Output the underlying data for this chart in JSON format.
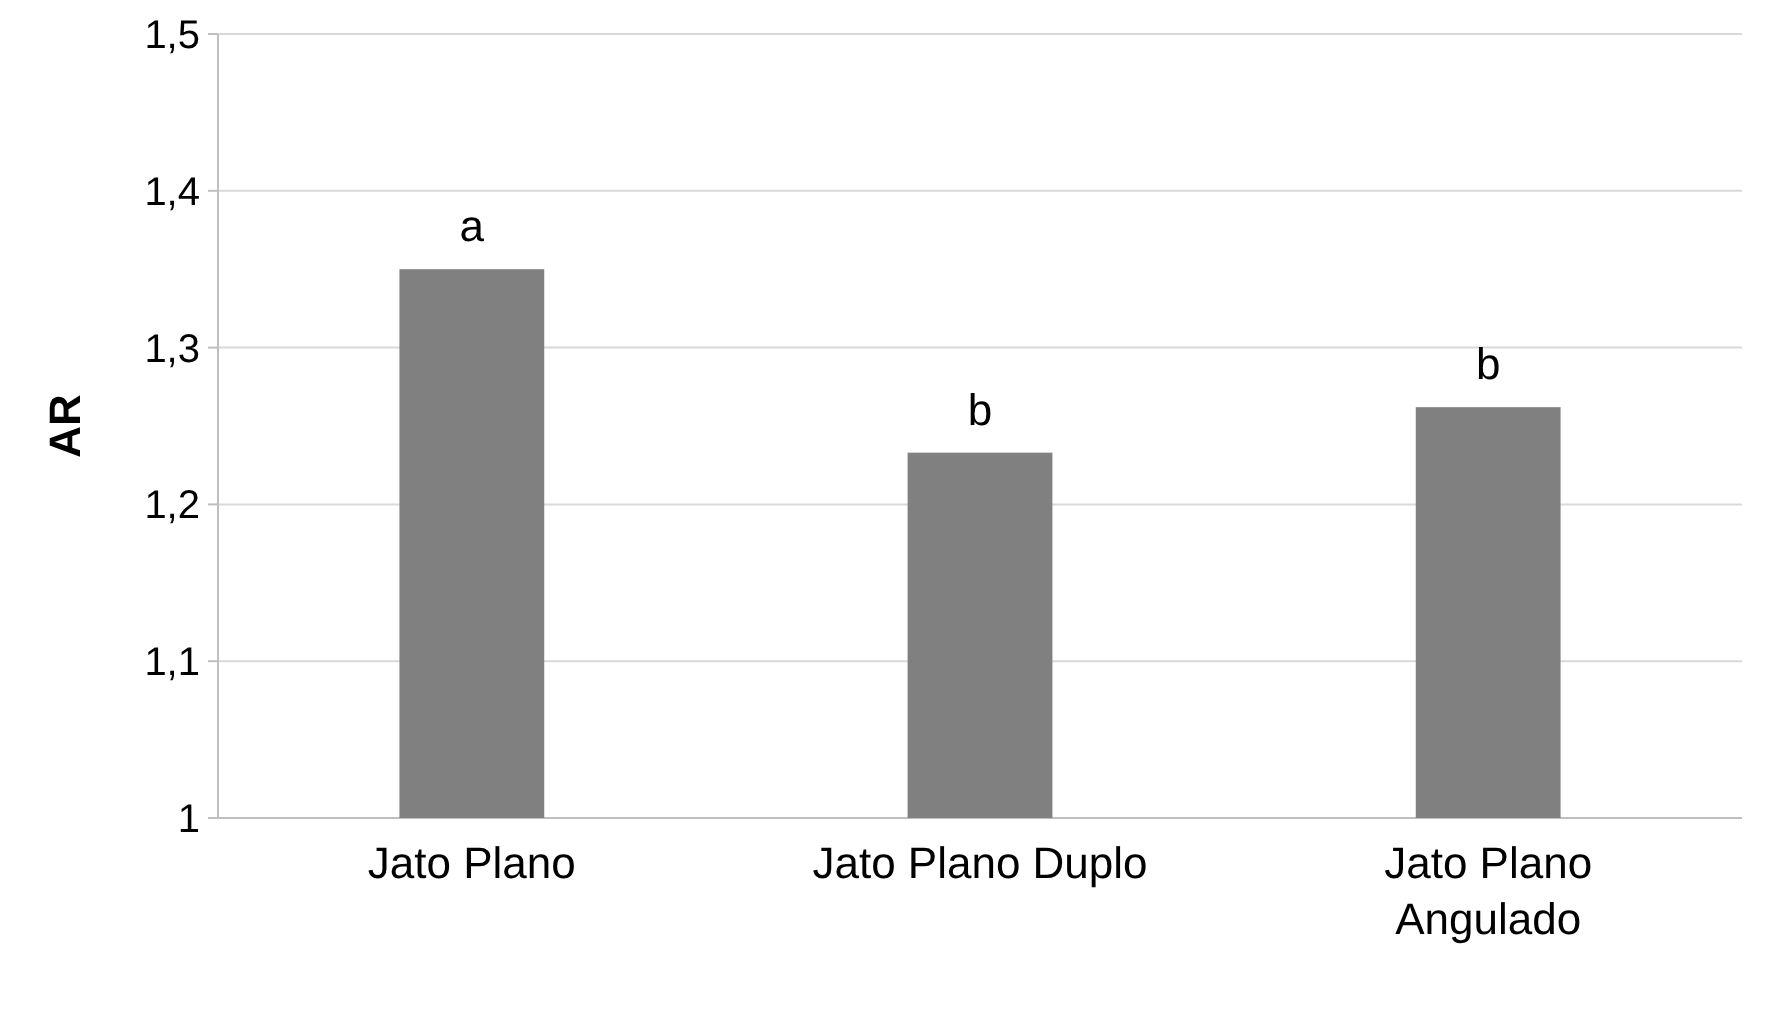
{
  "chart_data": {
    "type": "bar",
    "ylabel": "AR",
    "categories": [
      "Jato Plano",
      "Jato Plano Duplo",
      "Jato Plano Angulado"
    ],
    "values": [
      1.35,
      1.233,
      1.262
    ],
    "color": "#808080",
    "ylim": [
      1,
      1.5
    ],
    "yticks": [
      1,
      {
        "value": 1.1,
        "label": "1,1"
      },
      {
        "value": 1.2,
        "label": "1,2"
      },
      {
        "value": 1.3,
        "label": "1,3"
      },
      {
        "value": 1.4,
        "label": "1,4"
      },
      {
        "value": 1.5,
        "label": "1,5"
      }
    ],
    "grid": "y",
    "annotations": [
      {
        "text": "a",
        "x": "Jato Plano",
        "y": 1.35
      },
      {
        "text": "b",
        "x": "Jato Plano Duplo",
        "y": 1.233
      },
      {
        "text": "b",
        "x": "Jato Plano Angulado",
        "y": 1.262
      }
    ]
  }
}
